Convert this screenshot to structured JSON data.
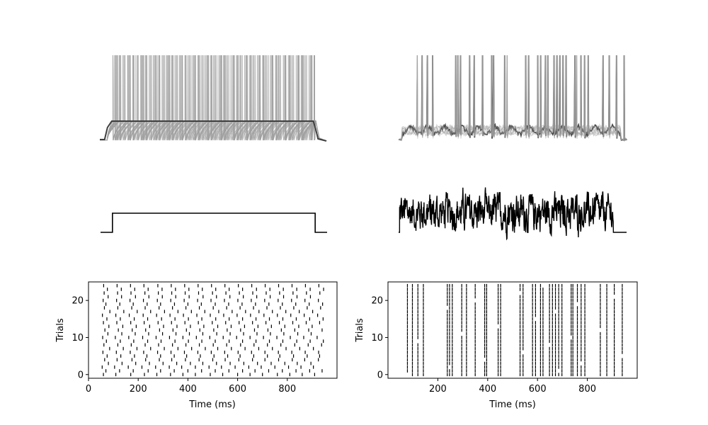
{
  "chart_data": [
    {
      "id": "voltage_constant",
      "type": "line",
      "title": "",
      "xlabel": "",
      "ylabel": "",
      "description_series": "25 overlaid membrane voltage traces, constant step input",
      "x_range_ms": [
        0,
        950
      ],
      "stimulus_on_ms": [
        50,
        900
      ],
      "trials": 25,
      "axes_visible": false
    },
    {
      "id": "voltage_noisy",
      "type": "line",
      "title": "",
      "xlabel": "",
      "ylabel": "",
      "x_range_ms": [
        0,
        950
      ],
      "stimulus_on_ms": [
        50,
        900
      ],
      "trials": 25,
      "axes_visible": false
    },
    {
      "id": "input_constant",
      "type": "line",
      "x": [
        0,
        50,
        50,
        900,
        900,
        950
      ],
      "y": [
        0,
        0,
        1,
        1,
        0,
        0
      ],
      "title": "",
      "xlabel": "",
      "ylabel": "",
      "axes_visible": false
    },
    {
      "id": "input_noisy",
      "type": "line",
      "title": "",
      "xlabel": "",
      "ylabel": "",
      "x_range_ms": [
        0,
        950
      ],
      "stimulus_on_ms": [
        50,
        900
      ],
      "axes_visible": false
    },
    {
      "id": "raster_constant",
      "type": "scatter",
      "marker": "vertical-line",
      "xlabel": "Time (ms)",
      "ylabel": "Trials",
      "xlim": [
        0,
        1000
      ],
      "ylim": [
        -1,
        25
      ],
      "xticks": [
        0,
        200,
        400,
        600,
        800
      ],
      "yticks": [
        0,
        10,
        20
      ],
      "trials": 25,
      "spike_times_per_trial": [
        [
          60,
          110,
          170,
          225,
          275,
          330,
          380,
          430,
          490,
          540,
          600,
          650,
          700,
          760,
          810,
          860,
          910
        ],
        [
          70,
          125,
          180,
          240,
          290,
          345,
          400,
          455,
          510,
          565,
          620,
          670,
          725,
          780,
          835,
          890,
          940
        ],
        [
          55,
          105,
          160,
          215,
          270,
          325,
          375,
          430,
          485,
          535,
          590,
          645,
          695,
          750,
          805,
          855,
          905
        ],
        [
          80,
          135,
          190,
          245,
          300,
          355,
          410,
          460,
          515,
          570,
          625,
          680,
          735,
          790,
          840,
          895
        ],
        [
          65,
          115,
          175,
          230,
          285,
          335,
          390,
          445,
          500,
          550,
          605,
          660,
          710,
          765,
          820,
          870,
          925
        ],
        [
          75,
          130,
          185,
          235,
          290,
          345,
          395,
          450,
          505,
          560,
          610,
          665,
          720,
          770,
          825,
          880,
          930
        ],
        [
          58,
          112,
          168,
          222,
          278,
          332,
          386,
          440,
          494,
          548,
          602,
          656,
          710,
          764,
          818,
          872,
          926
        ],
        [
          85,
          140,
          195,
          250,
          305,
          360,
          415,
          470,
          520,
          575,
          630,
          685,
          740,
          795,
          850,
          905
        ],
        [
          62,
          118,
          172,
          228,
          282,
          338,
          392,
          446,
          502,
          556,
          612,
          666,
          720,
          774,
          830,
          884,
          938
        ],
        [
          72,
          128,
          182,
          238,
          292,
          348,
          402,
          456,
          510,
          566,
          620,
          674,
          728,
          782,
          838,
          892,
          945
        ],
        [
          57,
          108,
          162,
          218,
          272,
          326,
          380,
          434,
          488,
          542,
          596,
          650,
          704,
          758,
          812,
          866,
          920
        ],
        [
          78,
          134,
          188,
          242,
          298,
          352,
          406,
          460,
          516,
          570,
          624,
          678,
          732,
          786,
          842,
          896
        ],
        [
          66,
          120,
          176,
          230,
          286,
          340,
          394,
          448,
          504,
          558,
          612,
          668,
          722,
          776,
          830,
          886,
          940
        ],
        [
          82,
          138,
          192,
          246,
          302,
          356,
          410,
          464,
          520,
          574,
          628,
          682,
          736,
          790,
          846,
          900
        ],
        [
          60,
          114,
          170,
          224,
          280,
          334,
          388,
          442,
          498,
          552,
          606,
          660,
          714,
          768,
          822,
          876,
          930
        ],
        [
          74,
          128,
          184,
          238,
          294,
          348,
          402,
          456,
          512,
          566,
          620,
          674,
          728,
          782,
          836,
          890,
          944
        ],
        [
          56,
          110,
          164,
          220,
          274,
          328,
          382,
          436,
          490,
          544,
          598,
          652,
          706,
          760,
          814,
          868,
          922
        ],
        [
          86,
          142,
          196,
          250,
          306,
          360,
          414,
          468,
          524,
          578,
          632,
          686,
          740,
          794,
          848,
          902
        ],
        [
          64,
          118,
          174,
          228,
          284,
          338,
          392,
          446,
          502,
          556,
          610,
          664,
          718,
          772,
          826,
          880,
          934
        ],
        [
          70,
          126,
          180,
          236,
          290,
          346,
          400,
          454,
          510,
          564,
          618,
          672,
          726,
          780,
          834,
          888,
          942
        ],
        [
          59,
          113,
          167,
          221,
          277,
          331,
          385,
          439,
          493,
          547,
          601,
          655,
          709,
          763,
          817,
          871,
          925
        ],
        [
          79,
          133,
          189,
          243,
          297,
          351,
          405,
          461,
          515,
          569,
          623,
          677,
          731,
          785,
          839,
          893
        ],
        [
          63,
          117,
          171,
          227,
          281,
          335,
          389,
          443,
          499,
          553,
          607,
          661,
          715,
          769,
          823,
          877,
          931
        ],
        [
          76,
          132,
          186,
          240,
          296,
          350,
          404,
          458,
          512,
          566,
          620,
          676,
          730,
          784,
          838,
          892,
          946
        ],
        [
          61,
          115,
          169,
          223,
          279,
          333,
          387,
          441,
          495,
          549,
          603,
          657,
          711,
          765,
          819,
          873,
          927
        ]
      ]
    },
    {
      "id": "raster_noisy",
      "type": "scatter",
      "marker": "vertical-line",
      "xlabel": "Time (ms)",
      "ylabel": "Trials",
      "xlim": [
        0,
        1000
      ],
      "ylim": [
        -1,
        25
      ],
      "xticks": [
        200,
        400,
        600,
        800
      ],
      "yticks": [
        0,
        10,
        20
      ],
      "trials": 25,
      "aligned_spike_times": [
        78,
        98,
        120,
        142,
        238,
        247,
        258,
        296,
        315,
        350,
        388,
        396,
        442,
        452,
        530,
        542,
        580,
        592,
        612,
        622,
        648,
        660,
        672,
        685,
        698,
        735,
        742,
        760,
        775,
        790,
        852,
        878,
        908,
        940
      ]
    }
  ],
  "colors": {
    "trace": "#3f3f3f",
    "trace_faint": "#9e9e9e",
    "black": "#000000",
    "background": "#ffffff"
  }
}
